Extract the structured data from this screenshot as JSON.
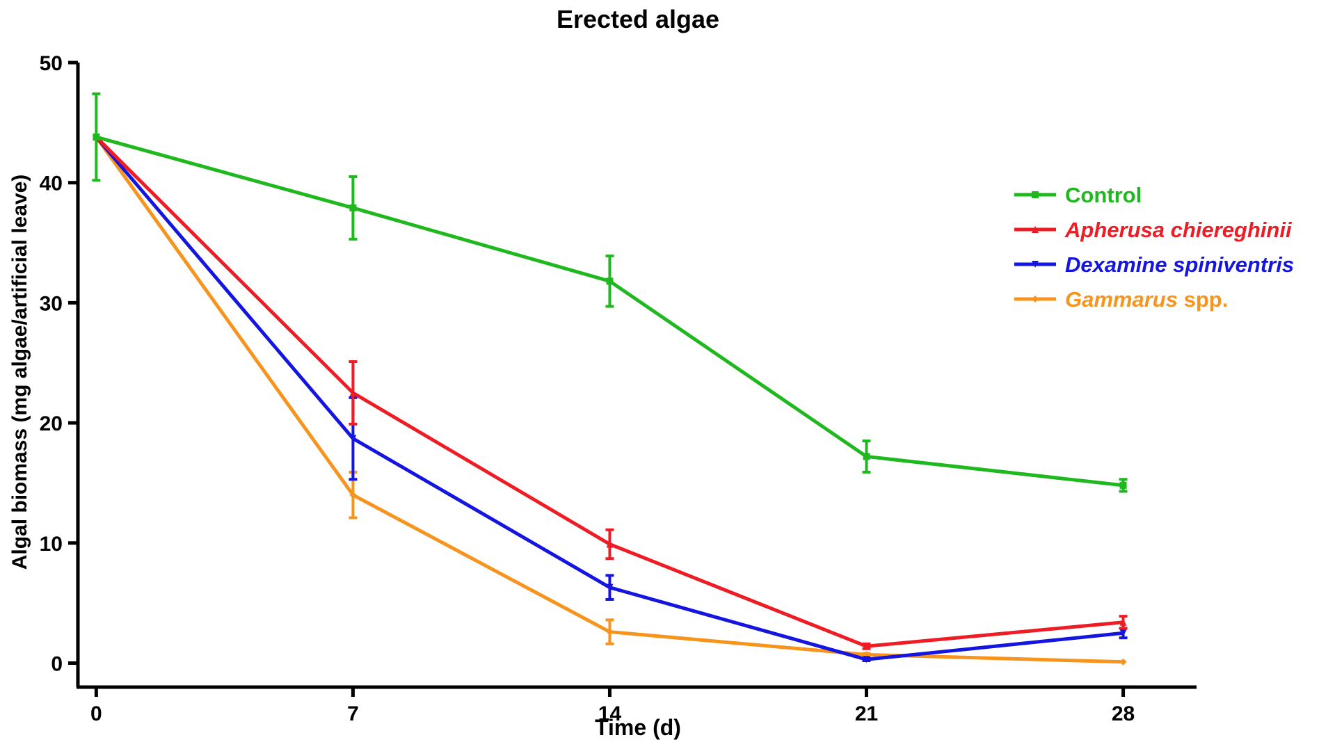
{
  "chart_data": {
    "type": "line",
    "title": "Erected algae",
    "xlabel": "Time (d)",
    "ylabel": "Algal biomass (mg algae/artificial leave)",
    "x": [
      0,
      7,
      14,
      21,
      28
    ],
    "x_ticks": [
      "0",
      "7",
      "14",
      "21",
      "28"
    ],
    "y_ticks": [
      "0",
      "10",
      "20",
      "30",
      "40",
      "50"
    ],
    "xlim": [
      -0.5,
      30
    ],
    "ylim": [
      -2,
      50
    ],
    "grid": false,
    "legend_position": "right",
    "series": [
      {
        "name": "Control",
        "name_parts": [
          {
            "text": "Control",
            "italic": false
          }
        ],
        "color": "#1fb81f",
        "marker": "square",
        "values": [
          43.8,
          37.9,
          31.8,
          17.2,
          14.8
        ],
        "errors": [
          3.6,
          2.6,
          2.1,
          1.3,
          0.5
        ]
      },
      {
        "name": "Apherusa chiereghinii",
        "name_parts": [
          {
            "text": "Apherusa chiereghinii",
            "italic": true
          }
        ],
        "color": "#ee1c25",
        "marker": "triangle-up",
        "values": [
          43.8,
          22.5,
          9.9,
          1.4,
          3.4
        ],
        "errors": [
          0.0,
          2.6,
          1.2,
          0.2,
          0.5
        ]
      },
      {
        "name": "Dexamine spiniventris",
        "name_parts": [
          {
            "text": "Dexamine spiniventris",
            "italic": true
          }
        ],
        "color": "#1515e0",
        "marker": "triangle-down",
        "values": [
          43.8,
          18.7,
          6.3,
          0.3,
          2.5
        ],
        "errors": [
          0.0,
          3.4,
          1.0,
          0.1,
          0.4
        ]
      },
      {
        "name": "Gammarus spp.",
        "name_parts": [
          {
            "text": "Gammarus",
            "italic": true
          },
          {
            "text": " spp.",
            "italic": false
          }
        ],
        "color": "#f7941d",
        "marker": "diamond",
        "values": [
          43.8,
          14.0,
          2.6,
          0.7,
          0.1
        ],
        "errors": [
          0.0,
          1.9,
          1.0,
          0.1,
          0.0
        ]
      }
    ]
  }
}
